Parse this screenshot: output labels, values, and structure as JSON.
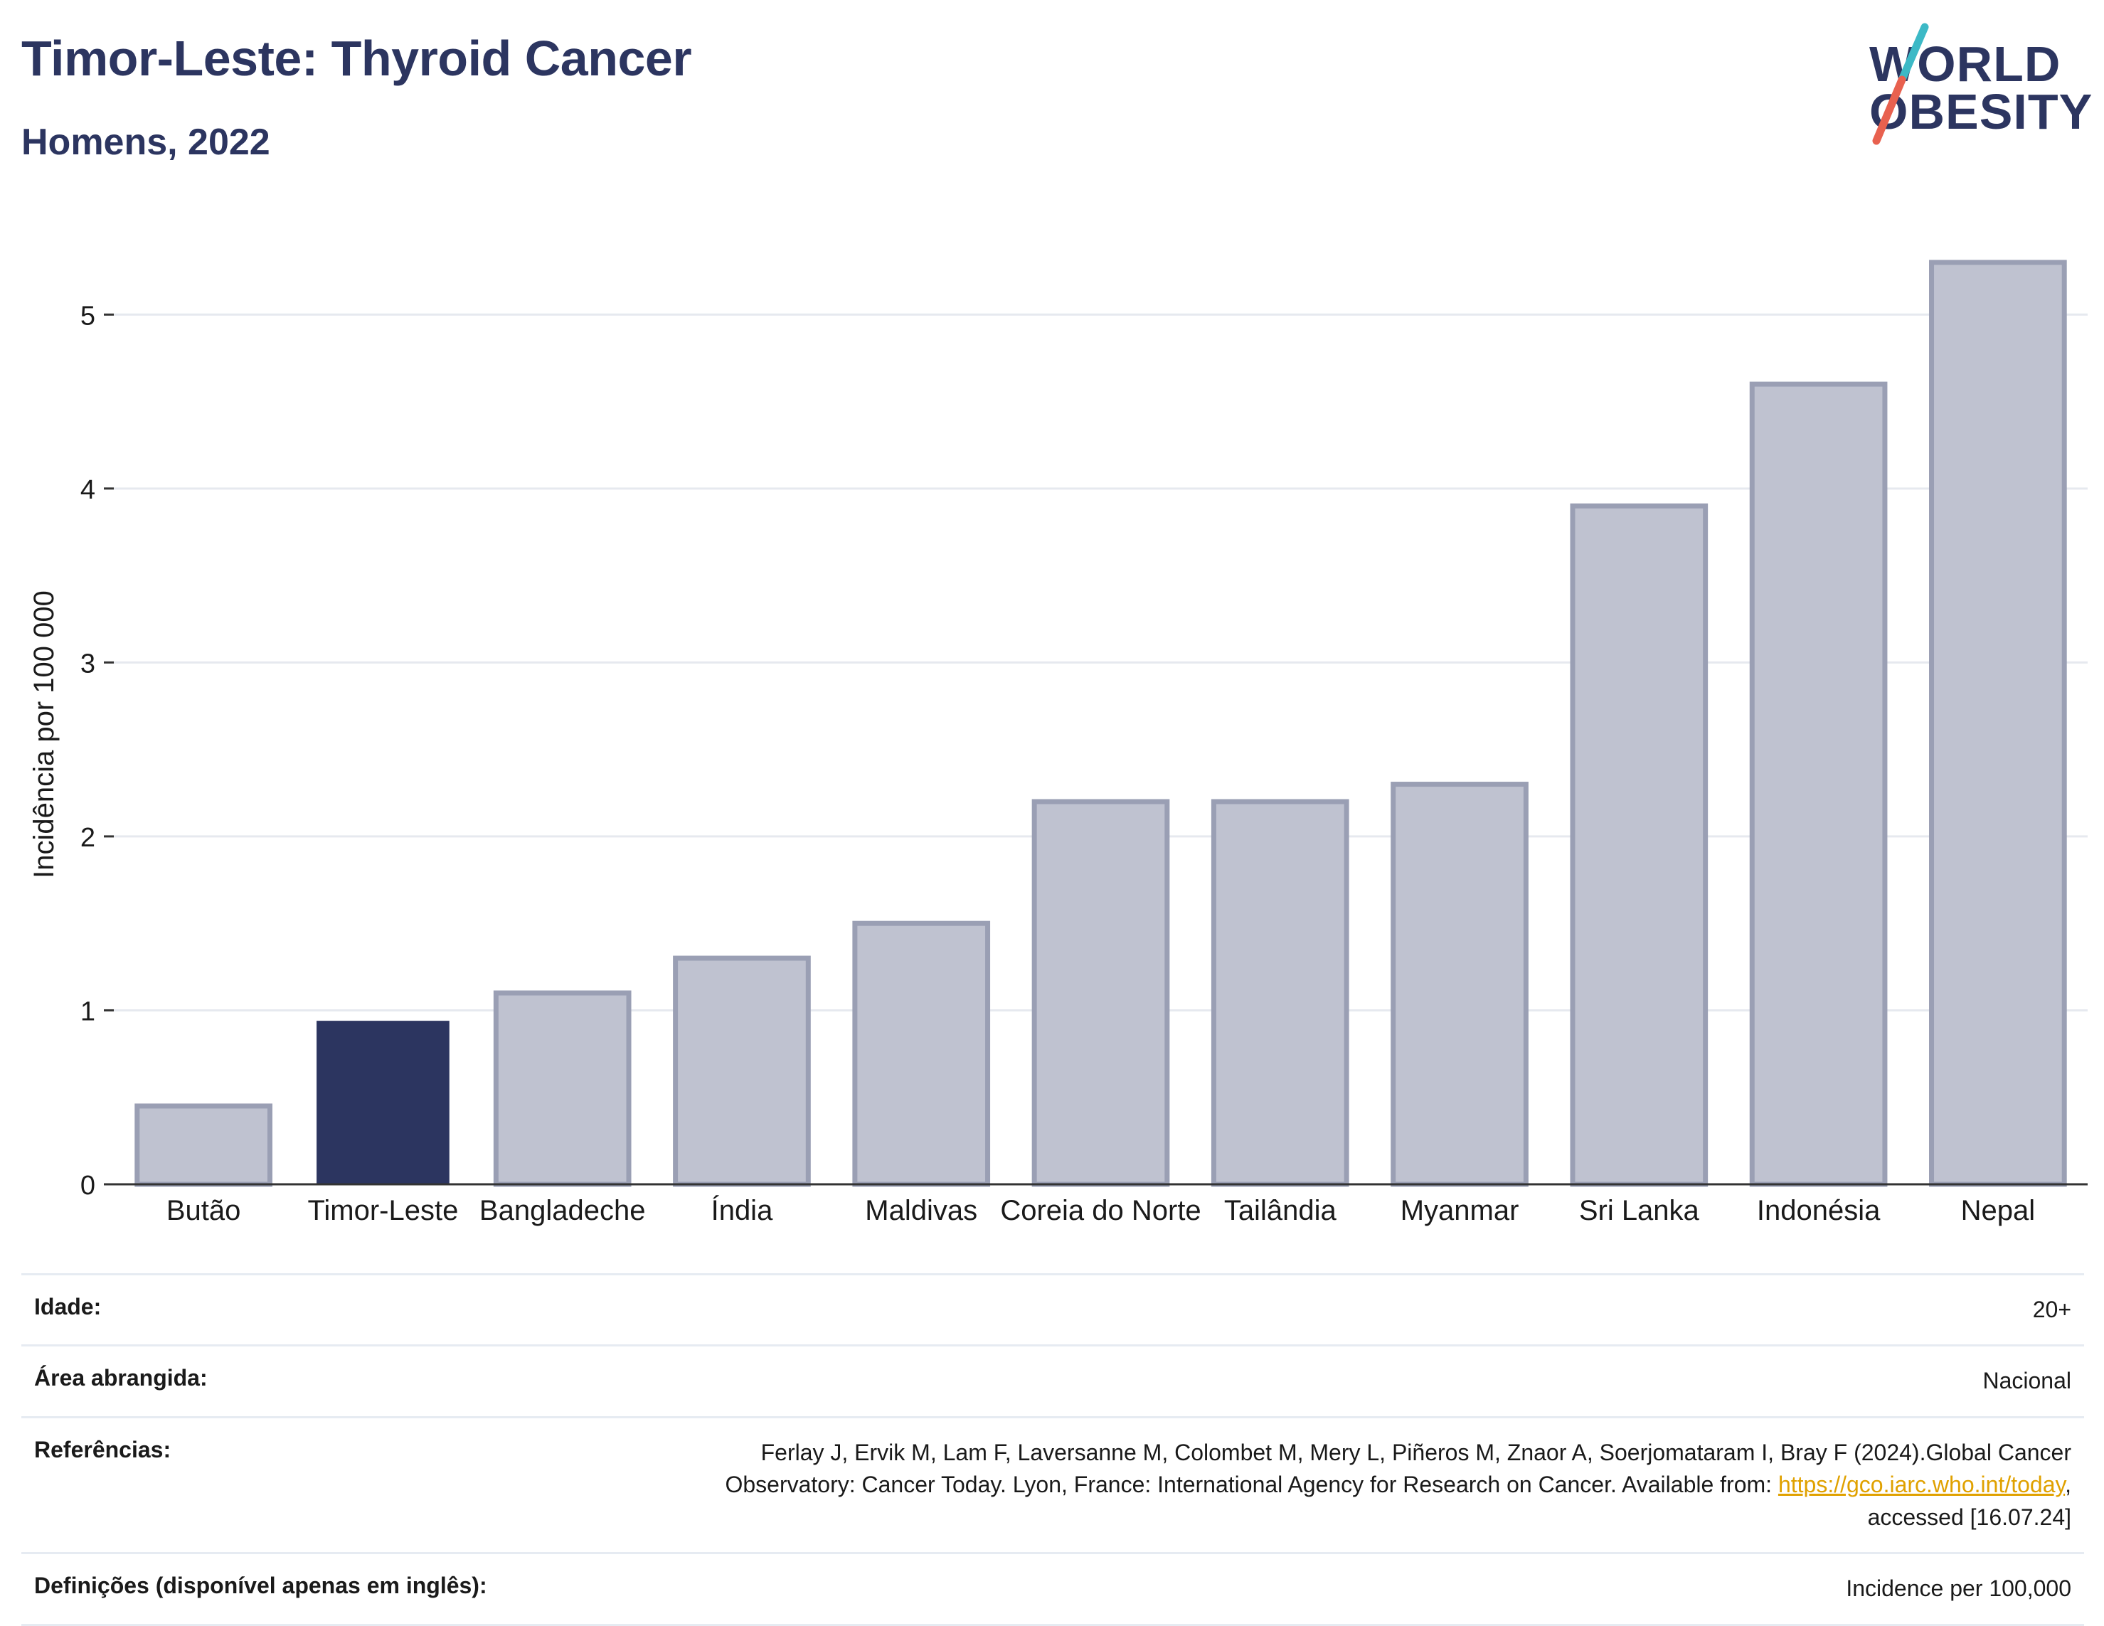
{
  "header": {
    "title": "Timor-Leste: Thyroid Cancer",
    "subtitle": "Homens, 2022",
    "logo_line1": "WORLD",
    "logo_line2": "OBESITY"
  },
  "colors": {
    "highlight": "#2c3560",
    "bar": "#bfc2d0",
    "bar_border": "#9a9fb4",
    "grid": "#e6e9ef",
    "logo_teal": "#3cb9c6",
    "logo_red": "#e8614f"
  },
  "chart_data": {
    "type": "bar",
    "categories": [
      "Butão",
      "Timor-Leste",
      "Bangladeche",
      "Índia",
      "Maldivas",
      "Coreia do Norte",
      "Tailândia",
      "Myanmar",
      "Sri Lanka",
      "Indonésia",
      "Nepal"
    ],
    "values": [
      0.45,
      0.94,
      1.1,
      1.3,
      1.5,
      2.2,
      2.2,
      2.3,
      3.9,
      4.6,
      5.3
    ],
    "highlight_category": "Timor-Leste",
    "ylabel": "Incidência por 100 000",
    "xlabel": "",
    "ylim": [
      0,
      5.5
    ],
    "yticks": [
      0,
      1,
      2,
      3,
      4,
      5
    ],
    "grid": true
  },
  "meta": [
    {
      "label": "Idade:",
      "value": "20+"
    },
    {
      "label": "Área abrangida:",
      "value": "Nacional"
    },
    {
      "label": "Referências:",
      "value_line1": "Ferlay J, Ervik M, Lam F, Laversanne M, Colombet M, Mery L, Piñeros M, Znaor A, Soerjomataram I, Bray F (2024).Global Cancer",
      "value_line2": "Observatory: Cancer Today. Lyon, France: International Agency for Research on Cancer. Available from: ",
      "link": "https://gco.iarc.who.int/today",
      "value_line2_end": ",",
      "value_line3": "accessed [16.07.24]"
    },
    {
      "label": "Definições (disponível apenas em inglês):",
      "value": "Incidence per 100,000"
    }
  ]
}
